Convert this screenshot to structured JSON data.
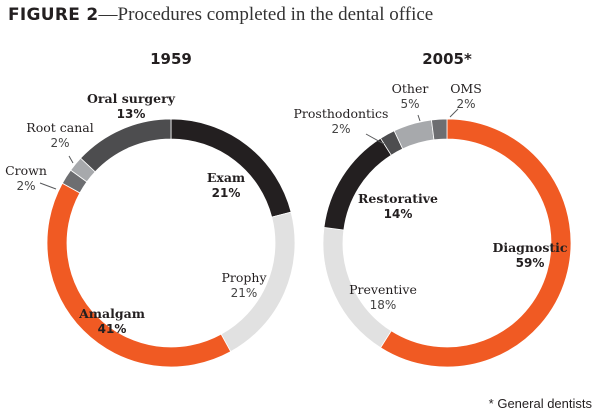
{
  "figure": {
    "number": "FIGURE 2",
    "title": "—Procedures completed in the dental office",
    "footnote": "* General dentists"
  },
  "colors": {
    "orange": "#f05a23",
    "black": "#231f20",
    "dark_gray": "#4d4d4f",
    "mid_gray": "#a7a9ac",
    "light_gray": "#e1e1e1",
    "line": "#58595b"
  },
  "chart_data": [
    {
      "type": "pie",
      "style": "donut",
      "title": "1959",
      "start": "top, clockwise",
      "slices": [
        {
          "label": "Exam",
          "value": 21,
          "pct_label": "21%",
          "color": "#231f20",
          "bold": true
        },
        {
          "label": "Prophy",
          "value": 21,
          "pct_label": "21%",
          "color": "#e1e1e1",
          "bold": false
        },
        {
          "label": "Amalgam",
          "value": 41,
          "pct_label": "41%",
          "color": "#f05a23",
          "bold": true
        },
        {
          "label": "Crown",
          "value": 2,
          "pct_label": "2%",
          "color": "#6d6e71",
          "bold": false
        },
        {
          "label": "Root canal",
          "value": 2,
          "pct_label": "2%",
          "color": "#a7a9ac",
          "bold": false
        },
        {
          "label": "Oral surgery",
          "value": 13,
          "pct_label": "13%",
          "color": "#4d4d4f",
          "bold": true
        }
      ]
    },
    {
      "type": "pie",
      "style": "donut",
      "title": "2005*",
      "start": "top, clockwise",
      "slices": [
        {
          "label": "Diagnostic",
          "value": 59,
          "pct_label": "59%",
          "color": "#f05a23",
          "bold": true
        },
        {
          "label": "Preventive",
          "value": 18,
          "pct_label": "18%",
          "color": "#e1e1e1",
          "bold": false
        },
        {
          "label": "Restorative",
          "value": 14,
          "pct_label": "14%",
          "color": "#231f20",
          "bold": true
        },
        {
          "label": "Prosthodontics",
          "value": 2,
          "pct_label": "2%",
          "color": "#4d4d4f",
          "bold": false
        },
        {
          "label": "Other",
          "value": 5,
          "pct_label": "5%",
          "color": "#a7a9ac",
          "bold": false
        },
        {
          "label": "OMS",
          "value": 2,
          "pct_label": "2%",
          "color": "#6d6e71",
          "bold": false
        }
      ]
    }
  ]
}
